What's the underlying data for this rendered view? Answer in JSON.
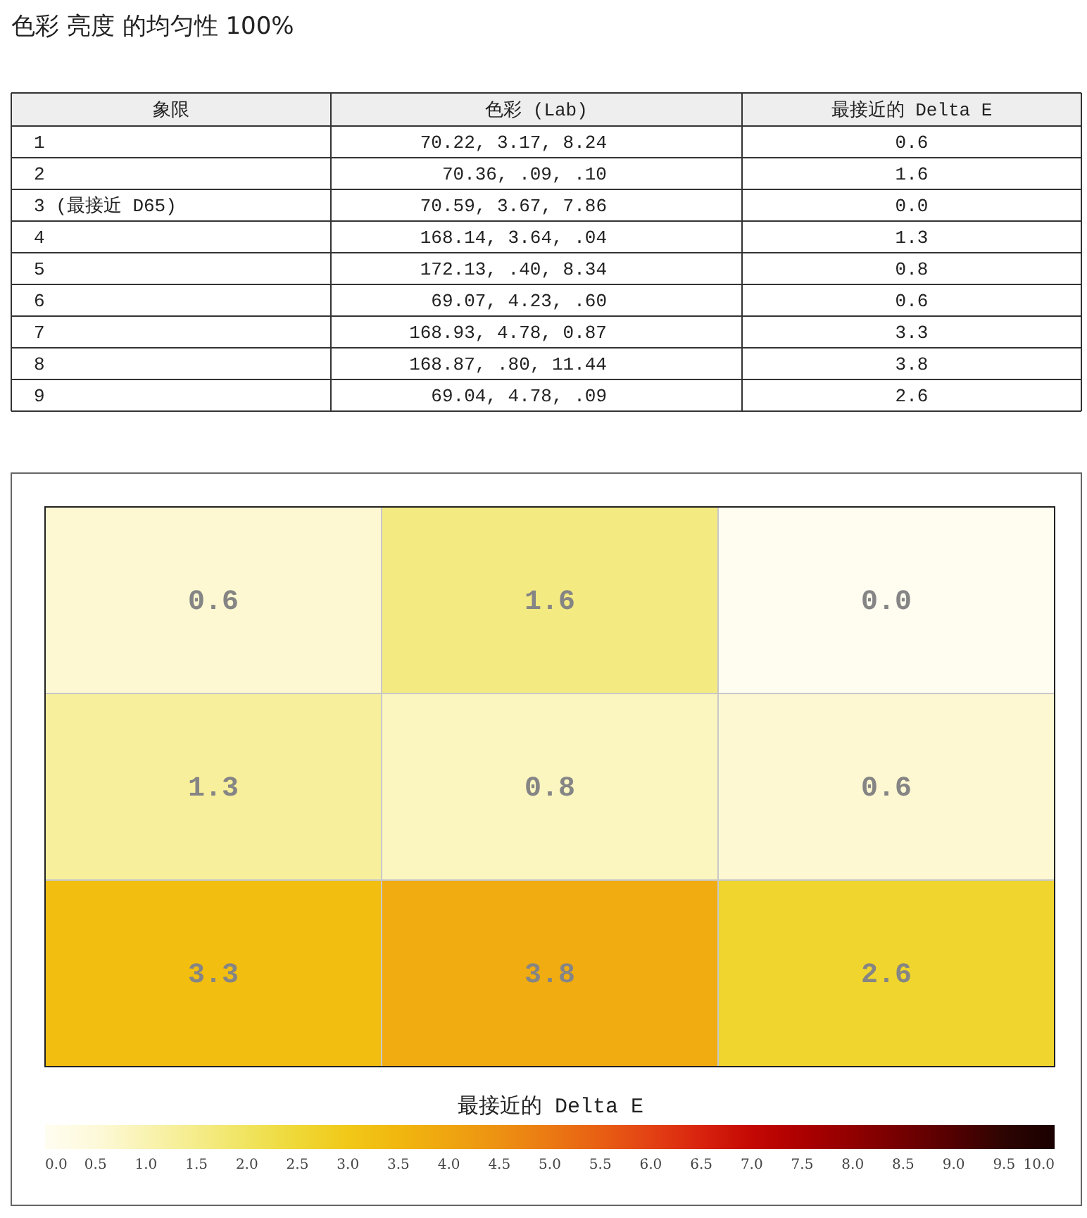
{
  "chart_data": [
    {
      "type": "other",
      "title": "色彩 亮度 的均匀性 100%",
      "categories": [
        "象限",
        "色彩 (Lab)",
        "最接近的 Delta E"
      ],
      "annotations": [
        "1",
        "70.22, 3.17, 8.24",
        "0.6",
        "2",
        "70.36, .09, .10",
        "1.6",
        "3 (最接近 D65)",
        "70.59, 3.67, 7.86",
        "0.0",
        "4",
        "168.14, 3.64, .04",
        "1.3",
        "5",
        "172.13, .40, 8.34",
        "0.8",
        "6",
        "69.07, 4.23, .60",
        "0.6",
        "7",
        "168.93, 4.78, 0.87",
        "3.3",
        "8",
        "168.87, .80, 11.44",
        "3.8",
        "9",
        "69.04, 4.78, .09",
        "2.6"
      ]
    },
    {
      "type": "heatmap",
      "categories": [
        null,
        null,
        null
      ],
      "y_categories": [
        null,
        null,
        null
      ],
      "cells": [
        [
          0.6,
          1.6,
          0
        ],
        [
          1.3,
          0.8,
          0.6
        ],
        [
          3.3,
          3.8,
          2.6
        ]
      ],
      "cell_labels": [
        [
          "0.6",
          "1.6",
          "0.0"
        ],
        [
          "1.3",
          "0.8",
          "0.6"
        ],
        [
          "3.3",
          "3.8",
          "2.6"
        ]
      ],
      "clabel": "最接近的 Delta E",
      "clim": [
        0,
        10
      ],
      "cticks": [
        {
          "value": 0,
          "label": "0.0"
        },
        0.5,
        {
          "value": 1,
          "label": "1.0"
        },
        1.5,
        {
          "value": 2,
          "label": "2.0"
        },
        2.5,
        {
          "value": 3,
          "label": "3.0"
        },
        3.5,
        {
          "value": 4,
          "label": "4.0"
        },
        4.5,
        {
          "value": 5,
          "label": "5.0"
        },
        5.5,
        {
          "value": 6,
          "label": "6.0"
        },
        6.5,
        {
          "value": 7,
          "label": "7.0"
        },
        7.5,
        {
          "value": 8,
          "label": "8.0"
        },
        8.5,
        {
          "value": 9,
          "label": "9.0"
        },
        9.5,
        {
          "value": 10,
          "label": "10.0"
        }
      ]
    }
  ]
}
